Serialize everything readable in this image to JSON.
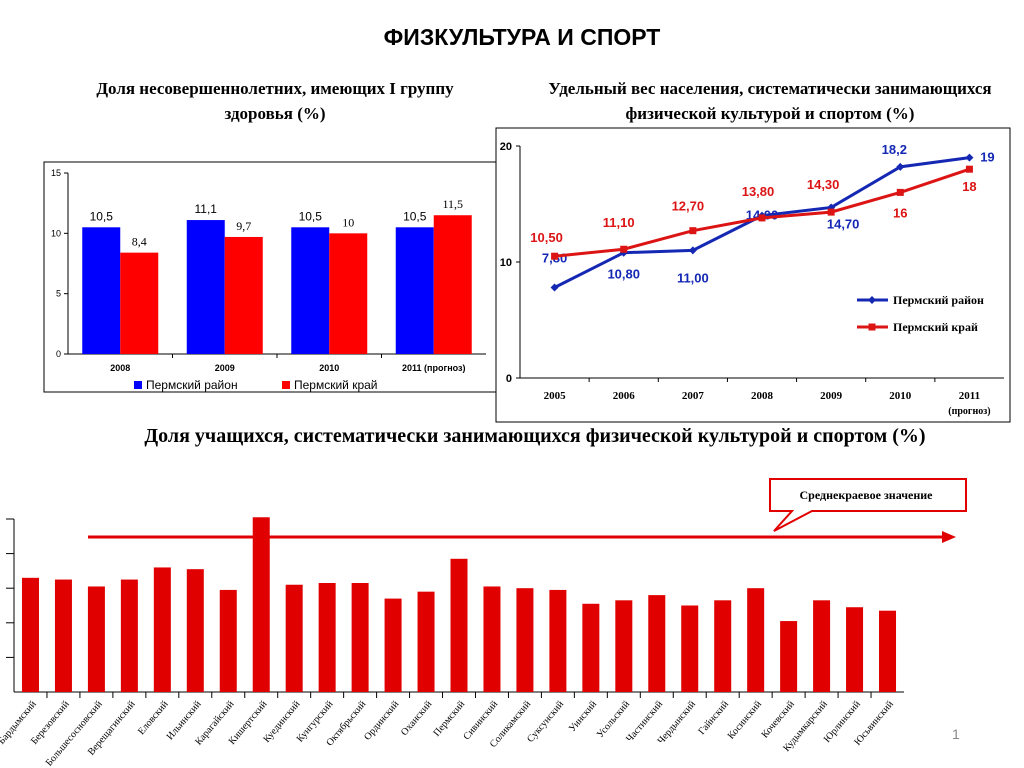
{
  "title": "ФИЗКУЛЬТУРА И СПОРТ",
  "page_number": "1",
  "colors": {
    "blue": "#0000FF",
    "red": "#FF0000",
    "line_blue": "#1428B4",
    "line_red": "#DC1414"
  },
  "chart_data": [
    {
      "type": "bar",
      "title": "Доля несовершеннолетних, имеющих I группу здоровья (%)",
      "categories": [
        "2008",
        "2009",
        "2010",
        "2011 (прогноз)"
      ],
      "series": [
        {
          "name": "Пермский район",
          "values": [
            10.5,
            11.1,
            10.5,
            10.5
          ],
          "labels": [
            "10,5",
            "11,1",
            "10,5",
            "10,5"
          ],
          "color": "#0000FF"
        },
        {
          "name": "Пермский край",
          "values": [
            8.4,
            9.7,
            10,
            11.5
          ],
          "labels": [
            "8,4",
            "9,7",
            "10",
            "11,5"
          ],
          "color": "#FF0000"
        }
      ],
      "ylim": [
        0,
        15
      ],
      "yticks": [
        0,
        5,
        10,
        15
      ],
      "legend": "bottom"
    },
    {
      "type": "line",
      "title": "Удельный вес населения, систематически занимающихся физической культурой и спортом (%)",
      "categories": [
        "2005",
        "2006",
        "2007",
        "2008",
        "2009",
        "2010",
        "2011 (прогноз)"
      ],
      "series": [
        {
          "name": "Пермский район",
          "values": [
            7.8,
            10.8,
            11.0,
            14.0,
            14.7,
            18.2,
            19
          ],
          "labels": [
            "7,80",
            "10,80",
            "11,00",
            "14,00",
            "14,70",
            "18,2",
            "19"
          ],
          "color": "#1428B4"
        },
        {
          "name": "Пермский край",
          "values": [
            10.5,
            11.1,
            12.7,
            13.8,
            14.3,
            16,
            18
          ],
          "labels": [
            "10,50",
            "11,10",
            "12,70",
            "13,80",
            "14,30",
            "16",
            "18"
          ],
          "color": "#DC1414"
        }
      ],
      "ylim": [
        0,
        20
      ],
      "yticks": [
        0,
        10,
        20
      ],
      "legend": "right"
    },
    {
      "type": "bar",
      "title": "Доля учащихся, систематически занимающихся физической культурой и спортом (%)",
      "categories": [
        "Бардымский",
        "Березовский",
        "Большесосновский",
        "Верещагинский",
        "Еловский",
        "Ильинский",
        "Карагайский",
        "Кишертский",
        "Куединский",
        "Кунгурский",
        "Октябрьский",
        "Ординский",
        "Оханский",
        "Пермский",
        "Сивинский",
        "Соликамский",
        "Суксунский",
        "Уинский",
        "Усольский",
        "Частинский",
        "Чердынский",
        "Гайнский",
        "Косинский",
        "Кочевский",
        "Кудымкарский",
        "Юрлинский",
        "Юсьвинский"
      ],
      "values": [
        33,
        32.5,
        30.5,
        32.5,
        36,
        35.5,
        29.5,
        50.5,
        31,
        31.5,
        31.5,
        27,
        29,
        38.5,
        30.5,
        30,
        29.5,
        25.5,
        26.5,
        28,
        25,
        26.5,
        30,
        20.5,
        26.5,
        24.5,
        23.5
      ],
      "ylim": [
        0,
        50
      ],
      "average_label": "Среднекраевое значение",
      "average_value": 45
    }
  ]
}
